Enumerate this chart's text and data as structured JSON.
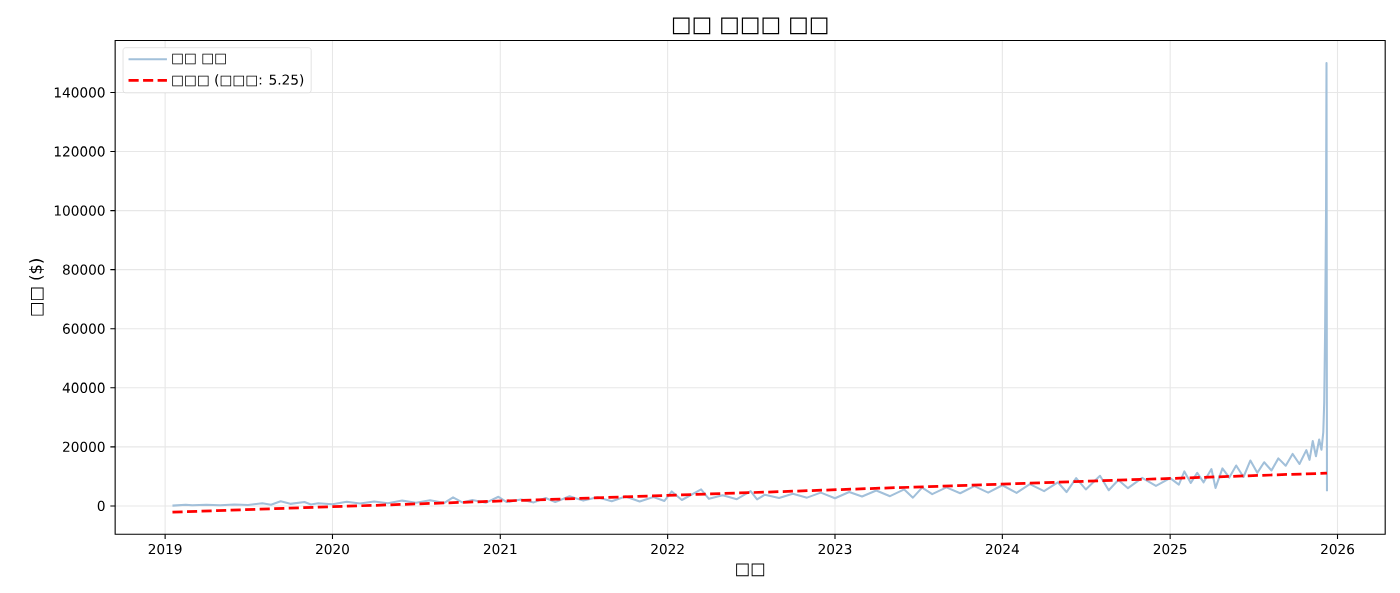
{
  "chart_data": {
    "type": "line",
    "title": "□□ □□□ □□",
    "xlabel": "□□",
    "ylabel": "□□ ($)",
    "xlim": [
      "2018-09-14",
      "2026-04-15"
    ],
    "ylim": [
      -9600,
      157600
    ],
    "xticks": [
      "2019",
      "2020",
      "2021",
      "2022",
      "2023",
      "2024",
      "2025",
      "2026"
    ],
    "yticks": [
      0,
      20000,
      40000,
      60000,
      80000,
      100000,
      120000,
      140000
    ],
    "grid": true,
    "legend": "top left",
    "series": [
      {
        "name": "□□ □□",
        "color": "#a2c0da",
        "line_style": "solid",
        "x": [
          "2019-01-17",
          "2019-02-15",
          "2019-03-01",
          "2019-04-01",
          "2019-05-01",
          "2019-06-01",
          "2019-07-01",
          "2019-08-01",
          "2019-08-20",
          "2019-09-10",
          "2019-10-01",
          "2019-11-01",
          "2019-11-15",
          "2019-12-01",
          "2020-01-01",
          "2020-02-01",
          "2020-03-01",
          "2020-04-01",
          "2020-05-01",
          "2020-06-01",
          "2020-07-01",
          "2020-08-01",
          "2020-09-01",
          "2020-09-20",
          "2020-10-10",
          "2020-11-01",
          "2020-12-01",
          "2020-12-28",
          "2021-01-15",
          "2021-02-15",
          "2021-03-15",
          "2021-04-10",
          "2021-05-01",
          "2021-06-01",
          "2021-07-01",
          "2021-08-01",
          "2021-09-01",
          "2021-10-01",
          "2021-11-01",
          "2021-12-01",
          "2021-12-25",
          "2022-01-10",
          "2022-02-01",
          "2022-03-15",
          "2022-04-01",
          "2022-05-01",
          "2022-06-01",
          "2022-07-01",
          "2022-07-15",
          "2022-08-01",
          "2022-09-01",
          "2022-10-01",
          "2022-11-01",
          "2022-12-01",
          "2023-01-01",
          "2023-02-01",
          "2023-03-01",
          "2023-04-01",
          "2023-05-01",
          "2023-06-01",
          "2023-06-20",
          "2023-07-10",
          "2023-08-01",
          "2023-09-01",
          "2023-10-01",
          "2023-11-01",
          "2023-12-01",
          "2024-01-01",
          "2024-02-01",
          "2024-03-01",
          "2024-04-01",
          "2024-05-01",
          "2024-05-20",
          "2024-06-10",
          "2024-07-01",
          "2024-08-01",
          "2024-08-20",
          "2024-09-10",
          "2024-10-01",
          "2024-11-01",
          "2024-12-01",
          "2025-01-01",
          "2025-01-20",
          "2025-02-01",
          "2025-02-15",
          "2025-03-01",
          "2025-03-15",
          "2025-04-01",
          "2025-04-10",
          "2025-04-25",
          "2025-05-10",
          "2025-05-25",
          "2025-06-10",
          "2025-06-25",
          "2025-07-10",
          "2025-07-25",
          "2025-08-10",
          "2025-08-25",
          "2025-09-10",
          "2025-09-25",
          "2025-10-10",
          "2025-10-25",
          "2025-11-01",
          "2025-11-08",
          "2025-11-15",
          "2025-11-22",
          "2025-11-27",
          "2025-12-01",
          "2025-12-03",
          "2025-12-05",
          "2025-12-07",
          "2025-12-08",
          "2025-12-09"
        ],
        "values": [
          100,
          400,
          200,
          400,
          200,
          500,
          300,
          900,
          400,
          1600,
          700,
          1300,
          500,
          900,
          600,
          1400,
          800,
          1500,
          900,
          1800,
          1100,
          1900,
          1000,
          2900,
          1200,
          2000,
          1100,
          3100,
          1300,
          2200,
          1200,
          2700,
          1300,
          3300,
          1800,
          2900,
          1600,
          3200,
          1500,
          3000,
          1700,
          4900,
          2000,
          5600,
          2400,
          3600,
          2300,
          5000,
          2200,
          3800,
          2700,
          4100,
          2800,
          4500,
          2600,
          4700,
          3200,
          5200,
          3300,
          5600,
          2800,
          6200,
          4000,
          6300,
          4300,
          6700,
          4500,
          7000,
          4400,
          7400,
          5000,
          8000,
          4700,
          9400,
          5600,
          10200,
          5300,
          8800,
          6000,
          9500,
          6800,
          9400,
          7200,
          11700,
          7800,
          11200,
          8000,
          12500,
          6100,
          12700,
          9600,
          13700,
          9800,
          15400,
          11200,
          14800,
          12000,
          16100,
          13600,
          17600,
          14200,
          18900,
          15600,
          22000,
          16800,
          22500,
          19000,
          25000,
          35000,
          60000,
          100000,
          150000,
          5000
        ]
      },
      {
        "name": "□□□ (□□□: 5.25)",
        "color": "#ff0000",
        "line_style": "dashed",
        "x": [
          "2019-01-17",
          "2025-12-09"
        ],
        "values": [
          -2100,
          11100
        ]
      }
    ]
  }
}
